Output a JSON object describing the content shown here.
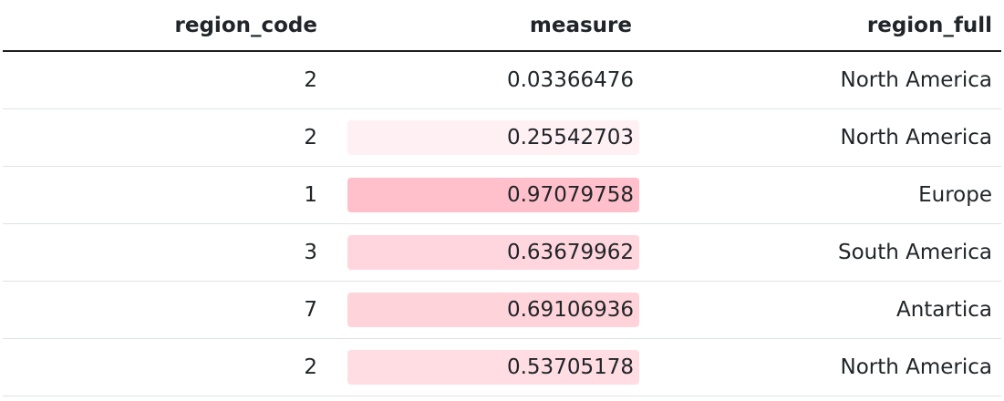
{
  "table": {
    "columns": [
      "region_code",
      "measure",
      "region_full"
    ],
    "rows": [
      {
        "region_code": "2",
        "measure": "0.03366476",
        "measure_value": 0.03366476,
        "region_full": "North America"
      },
      {
        "region_code": "2",
        "measure": "0.25542703",
        "measure_value": 0.25542703,
        "region_full": "North America"
      },
      {
        "region_code": "1",
        "measure": "0.97079758",
        "measure_value": 0.97079758,
        "region_full": "Europe"
      },
      {
        "region_code": "3",
        "measure": "0.63679962",
        "measure_value": 0.63679962,
        "region_full": "South America"
      },
      {
        "region_code": "7",
        "measure": "0.69106936",
        "measure_value": 0.69106936,
        "region_full": "Antartica"
      },
      {
        "region_code": "2",
        "measure": "0.53705178",
        "measure_value": 0.53705178,
        "region_full": "North America"
      }
    ],
    "highlight_color": "#ffc0cb"
  }
}
